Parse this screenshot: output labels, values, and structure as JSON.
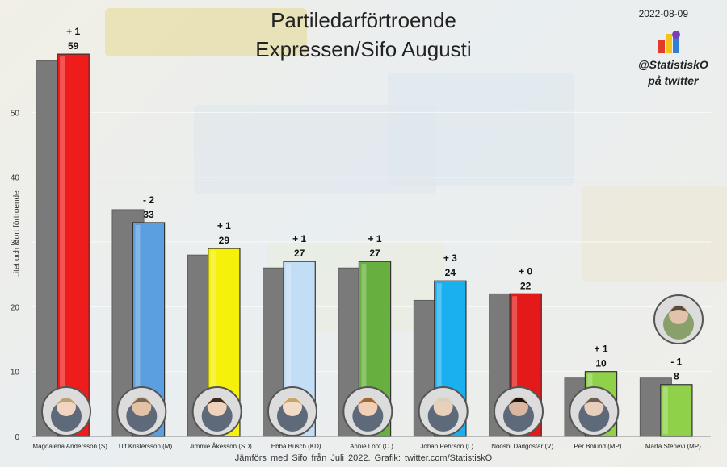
{
  "title": "Partiledarförtroende",
  "subtitle": "Expressen/Sifo  Augusti",
  "date": "2022-08-09",
  "handle_line1": "@StatistiskO",
  "handle_line2": "på twitter",
  "footer": "Jämförs med  Sifo från Juli 2022.   Grafik: twitter.com/StatistiskO",
  "chart_data": {
    "type": "bar",
    "title": "Partiledarförtroende",
    "ylabel": "Litet och stort förtroende",
    "ylim": [
      0,
      63
    ],
    "yticks": [
      0,
      10,
      20,
      30,
      40,
      50
    ],
    "categories": [
      "Magdalena Andersson (S)",
      "Ulf Kristersson (M)",
      "Jimmie Åkesson (SD)",
      "Ebba Busch (KD)",
      "Annie Lööf (C )",
      "Johan Pehrson (L)",
      "Nooshi Dadgostar (V)",
      "Per Bolund (MP)",
      "Märta Stenevi (MP)"
    ],
    "series": [
      {
        "name": "Juli 2022",
        "values": [
          58,
          35,
          28,
          26,
          26,
          21,
          22,
          9,
          9
        ],
        "color": "#7a7a7a"
      },
      {
        "name": "Augusti 2022",
        "values": [
          59,
          33,
          29,
          27,
          27,
          24,
          22,
          10,
          8
        ],
        "colors": [
          "#ef1c1c",
          "#5b9fe0",
          "#f5f10a",
          "#c2ddf6",
          "#67b03f",
          "#1ab0f0",
          "#e41a1a",
          "#8fd24a",
          "#8fd24a"
        ]
      }
    ],
    "change_labels": [
      "+ 1",
      "- 2",
      "+ 1",
      "+ 1",
      "+ 1",
      "+ 3",
      "+ 0",
      "+ 1",
      "- 1"
    ],
    "value_labels": [
      "59",
      "33",
      "29",
      "27",
      "27",
      "24",
      "22",
      "10",
      "8"
    ]
  }
}
